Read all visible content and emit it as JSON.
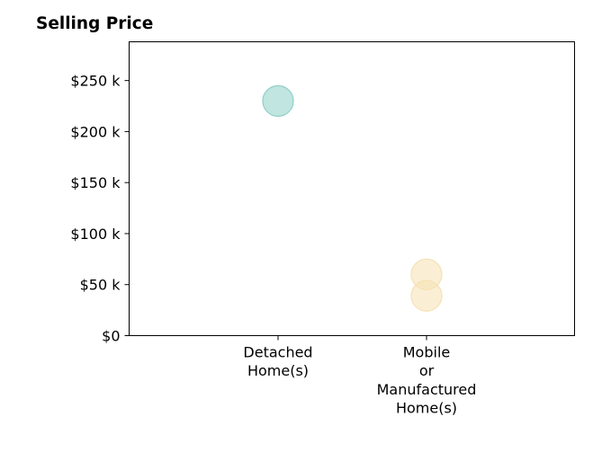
{
  "chart_data": {
    "type": "scatter",
    "title": "Selling Price",
    "xlabel": "",
    "ylabel": "",
    "categories": [
      [
        "Detached",
        "Home(s)"
      ],
      [
        "Mobile",
        "or",
        "Manufactured",
        "Home(s)"
      ]
    ],
    "ylim": [
      0,
      288000
    ],
    "yticks": [
      {
        "value": 0,
        "label": "$0"
      },
      {
        "value": 50000,
        "label": "$50 k"
      },
      {
        "value": 100000,
        "label": "$100 k"
      },
      {
        "value": 150000,
        "label": "$150 k"
      },
      {
        "value": 200000,
        "label": "$200 k"
      },
      {
        "value": 250000,
        "label": "$250 k"
      }
    ],
    "grid": false,
    "points": [
      {
        "category": 0,
        "value": 230000,
        "color": "#8ecfc9"
      },
      {
        "category": 1,
        "value": 60000,
        "color": "#f6e2b3"
      },
      {
        "category": 1,
        "value": 39000,
        "color": "#f6e2b3"
      }
    ],
    "point_opacity": 0.55
  }
}
